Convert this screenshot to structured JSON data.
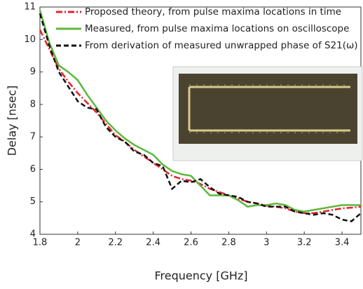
{
  "chart_data": {
    "type": "line",
    "x_label": "Frequency [GHz]",
    "y_label": "Delay [nsec]",
    "xlim": [
      1.8,
      3.5
    ],
    "ylim": [
      4,
      11
    ],
    "xticks": [
      1.8,
      2,
      2.2,
      2.4,
      2.6,
      2.8,
      3,
      3.2,
      3.4
    ],
    "yticks": [
      4,
      5,
      6,
      7,
      8,
      9,
      10,
      11
    ],
    "legend": "upper-left",
    "x": [
      1.8,
      1.85,
      1.9,
      1.95,
      2.0,
      2.05,
      2.1,
      2.15,
      2.2,
      2.25,
      2.3,
      2.35,
      2.4,
      2.45,
      2.5,
      2.55,
      2.6,
      2.65,
      2.7,
      2.75,
      2.8,
      2.85,
      2.9,
      2.95,
      3.0,
      3.05,
      3.1,
      3.15,
      3.2,
      3.25,
      3.3,
      3.35,
      3.4,
      3.45,
      3.5
    ],
    "series": [
      {
        "name": "Proposed theory, from pulse maxima locations in time",
        "color": "#e8202a",
        "dash": "dashdot",
        "values": [
          10.3,
          9.7,
          9.1,
          8.7,
          8.35,
          8.05,
          7.75,
          7.4,
          7.05,
          6.85,
          6.6,
          6.4,
          6.2,
          6.0,
          5.8,
          5.7,
          5.65,
          5.55,
          5.4,
          5.3,
          5.2,
          5.1,
          5.0,
          4.95,
          4.88,
          4.85,
          4.8,
          4.7,
          4.65,
          4.65,
          4.7,
          4.75,
          4.8,
          4.82,
          4.85
        ]
      },
      {
        "name": "Measured, from pulse maxima locations on oscilloscope",
        "color": "#5cb83c",
        "dash": "solid",
        "values": [
          10.9,
          9.9,
          9.2,
          9.0,
          8.75,
          8.3,
          7.9,
          7.5,
          7.2,
          6.95,
          6.75,
          6.6,
          6.45,
          6.15,
          5.95,
          5.85,
          5.8,
          5.5,
          5.2,
          5.2,
          5.2,
          5.05,
          4.85,
          4.9,
          4.9,
          4.95,
          4.9,
          4.75,
          4.7,
          4.75,
          4.8,
          4.85,
          4.9,
          4.9,
          4.9
        ]
      },
      {
        "name": "From derivation of measured unwrapped phase of S21(ω)",
        "color": "#111111",
        "dash": "dashed",
        "values": [
          10.8,
          9.8,
          9.0,
          8.55,
          8.1,
          7.9,
          7.85,
          7.3,
          7.0,
          6.85,
          6.55,
          6.45,
          6.2,
          6.1,
          5.4,
          5.65,
          5.6,
          5.7,
          5.45,
          5.25,
          5.2,
          5.15,
          5.0,
          4.95,
          4.85,
          4.85,
          4.85,
          4.7,
          4.65,
          4.6,
          4.65,
          4.6,
          4.45,
          4.4,
          4.65
        ]
      }
    ]
  }
}
